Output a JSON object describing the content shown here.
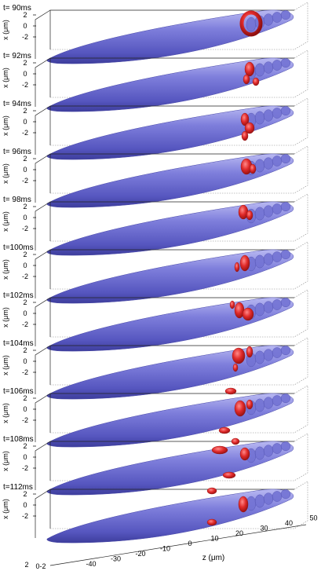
{
  "panels": [
    {
      "time_label": "t= 90ms"
    },
    {
      "time_label": "t= 92ms"
    },
    {
      "time_label": "t= 94ms"
    },
    {
      "time_label": "t= 96ms"
    },
    {
      "time_label": "t= 98ms"
    },
    {
      "time_label": "t=100ms"
    },
    {
      "time_label": "t=102ms"
    },
    {
      "time_label": "t=104ms"
    },
    {
      "time_label": "t=106ms"
    },
    {
      "time_label": "t=108ms"
    },
    {
      "time_label": "t=112ms"
    }
  ],
  "x_axis_label": "x (μm)",
  "x_ticks": [
    "2",
    "0",
    "-2"
  ],
  "z_axis_label": "z (μm)",
  "z_ticks": [
    "-40",
    "-30",
    "-20",
    "-10",
    "0",
    "10",
    "20",
    "30",
    "40",
    "50"
  ],
  "y_ticks": [
    "2",
    "0-2"
  ],
  "colors": {
    "condensate": "#6b6bd6",
    "vortex": "#e02a2a"
  }
}
